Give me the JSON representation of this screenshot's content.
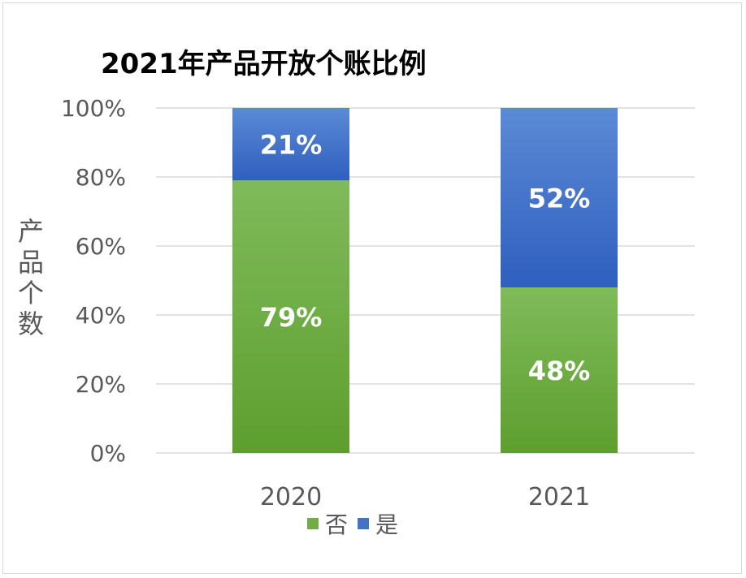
{
  "chart_data": {
    "type": "bar",
    "stacked": true,
    "title": "2021年产品开放个账比例",
    "ylabel": "产品个数",
    "xlabel": "",
    "categories": [
      "2020",
      "2021"
    ],
    "ylim": [
      0,
      100
    ],
    "yticks": [
      "0%",
      "20%",
      "40%",
      "60%",
      "80%",
      "100%"
    ],
    "ytick_values": [
      0,
      20,
      40,
      60,
      80,
      100
    ],
    "grid": true,
    "legend_position": "bottom",
    "series": [
      {
        "name": "否",
        "values": [
          79,
          48
        ],
        "labels": [
          "79%",
          "48%"
        ],
        "color": "#70ad47"
      },
      {
        "name": "是",
        "values": [
          21,
          52
        ],
        "labels": [
          "21%",
          "52%"
        ],
        "color": "#4472c4"
      }
    ]
  }
}
